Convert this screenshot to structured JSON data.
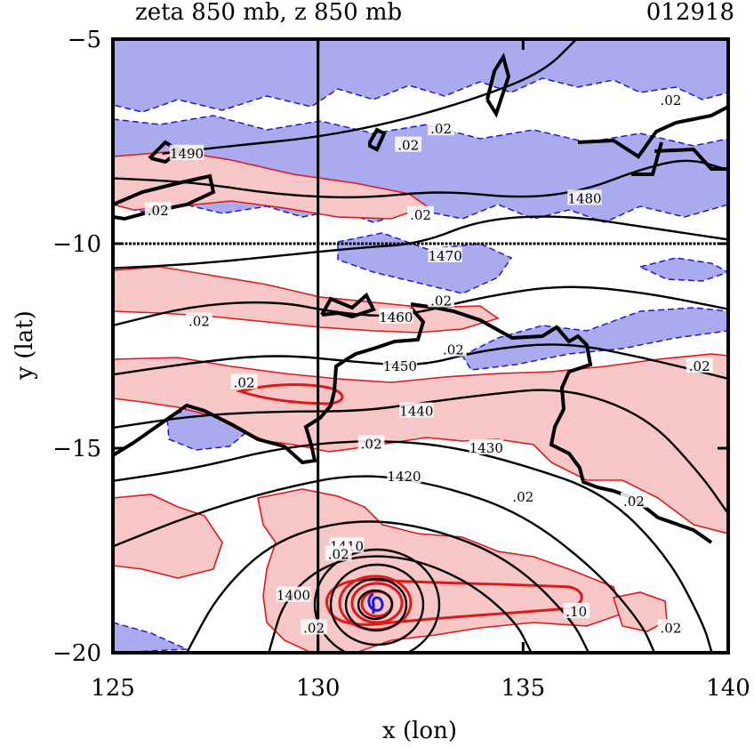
{
  "chart_data": {
    "type": "contour",
    "title_left": "zeta 850 mb, z 850 mb",
    "title_right": "012918",
    "xlabel": "x (lon)",
    "ylabel": "y (lat)",
    "xlim": [
      125,
      140
    ],
    "ylim": [
      -20,
      -5
    ],
    "xticks": [
      125,
      130,
      135,
      140
    ],
    "yticks": [
      -5,
      -10,
      -15,
      -20
    ],
    "xtick_labels": [
      "125",
      "130",
      "135",
      "140"
    ],
    "ytick_labels": [
      "−5",
      "−10",
      "−15",
      "−20"
    ],
    "reference_lines": {
      "x": 130,
      "y": -10
    },
    "colors": {
      "positive_fill": "#f7c6c6",
      "positive_line": "#e01818",
      "negative_fill": "#aaaaee",
      "negative_line": "#1a1ad8",
      "height_line": "#000000"
    },
    "height_contours": [
      {
        "label": "1490",
        "points": [
          [
            126.2,
            -7.8
          ],
          [
            128,
            -7.6
          ],
          [
            130,
            -7.4
          ],
          [
            132,
            -7.0
          ],
          [
            134,
            -6.4
          ],
          [
            135.5,
            -5.8
          ],
          [
            136.3,
            -5.0
          ]
        ]
      },
      {
        "label": "1480",
        "points": [
          [
            125,
            -8.4
          ],
          [
            127,
            -8.5
          ],
          [
            129,
            -8.8
          ],
          [
            131,
            -8.9
          ],
          [
            133,
            -8.7
          ],
          [
            135,
            -8.9
          ],
          [
            136.5,
            -8.7
          ],
          [
            137.8,
            -8.2
          ],
          [
            139,
            -7.9
          ],
          [
            140,
            -8.2
          ]
        ]
      },
      {
        "label": "1470",
        "points": [
          [
            125,
            -10.6
          ],
          [
            127,
            -10.5
          ],
          [
            129,
            -10.3
          ],
          [
            131,
            -10.1
          ],
          [
            132.5,
            -10.0
          ],
          [
            134,
            -9.4
          ],
          [
            136,
            -9.3
          ],
          [
            138,
            -9.6
          ],
          [
            140,
            -9.9
          ]
        ]
      },
      {
        "label": "1460",
        "points": [
          [
            125,
            -12.0
          ],
          [
            127,
            -11.5
          ],
          [
            129,
            -11.4
          ],
          [
            130.5,
            -11.7
          ],
          [
            132,
            -11.8
          ],
          [
            134,
            -11.3
          ],
          [
            136,
            -11.0
          ],
          [
            138,
            -11.2
          ],
          [
            140,
            -11.6
          ]
        ]
      },
      {
        "label": "1450",
        "points": [
          [
            125,
            -13.2
          ],
          [
            127,
            -12.9
          ],
          [
            129,
            -12.7
          ],
          [
            131,
            -12.9
          ],
          [
            132.5,
            -13.0
          ],
          [
            134,
            -12.6
          ],
          [
            136,
            -12.4
          ],
          [
            138,
            -12.8
          ],
          [
            140,
            -13.3
          ]
        ]
      },
      {
        "label": "1440",
        "points": [
          [
            125,
            -14.5
          ],
          [
            127,
            -14.2
          ],
          [
            129,
            -14.1
          ],
          [
            131,
            -14.1
          ],
          [
            132.5,
            -13.9
          ],
          [
            134,
            -13.7
          ],
          [
            136,
            -13.5
          ],
          [
            138,
            -14.2
          ],
          [
            139.3,
            -15.6
          ],
          [
            140,
            -16.6
          ]
        ]
      },
      {
        "label": "1430",
        "points": [
          [
            125,
            -15.8
          ],
          [
            127,
            -15.5
          ],
          [
            129,
            -15.0
          ],
          [
            131,
            -14.8
          ],
          [
            133,
            -14.9
          ],
          [
            135,
            -15.4
          ],
          [
            137,
            -16.1
          ],
          [
            138.5,
            -17.6
          ],
          [
            139.4,
            -19.3
          ],
          [
            139.6,
            -20
          ]
        ]
      },
      {
        "label": "1420",
        "points": [
          [
            125,
            -17.4
          ],
          [
            127,
            -16.6
          ],
          [
            129,
            -16.0
          ],
          [
            131,
            -15.6
          ],
          [
            133,
            -15.9
          ],
          [
            135,
            -16.6
          ],
          [
            136.8,
            -18.0
          ],
          [
            137.9,
            -19.3
          ],
          [
            138.2,
            -20
          ]
        ]
      },
      {
        "label": "1410",
        "points": [
          [
            126.8,
            -20
          ],
          [
            127.6,
            -18.5
          ],
          [
            129,
            -17.2
          ],
          [
            131,
            -16.7
          ],
          [
            133,
            -17.0
          ],
          [
            134.8,
            -17.8
          ],
          [
            136.2,
            -19.2
          ],
          [
            136.6,
            -20
          ]
        ]
      },
      {
        "label": "1400",
        "points": [
          [
            128.8,
            -20
          ],
          [
            129.2,
            -18.6
          ],
          [
            130.4,
            -17.7
          ],
          [
            132,
            -17.6
          ],
          [
            133.6,
            -18.2
          ],
          [
            134.8,
            -19.2
          ],
          [
            135.2,
            -20
          ]
        ]
      }
    ],
    "height_labels": [
      {
        "text": "1490",
        "x": 126.8,
        "y": -7.8
      },
      {
        "text": "1480",
        "x": 136.5,
        "y": -8.9
      },
      {
        "text": "1470",
        "x": 133.1,
        "y": -10.3
      },
      {
        "text": "1460",
        "x": 131.9,
        "y": -11.8
      },
      {
        "text": "1450",
        "x": 132.0,
        "y": -13.0
      },
      {
        "text": "1440",
        "x": 132.4,
        "y": -14.1
      },
      {
        "text": "1430",
        "x": 134.1,
        "y": -15.0
      },
      {
        "text": "1420",
        "x": 132.1,
        "y": -15.7
      },
      {
        "text": "1410",
        "x": 130.7,
        "y": -17.4
      },
      {
        "text": "1400",
        "x": 129.4,
        "y": -18.6
      },
      {
        "text": ".10",
        "x": 136.3,
        "y": -19.0
      }
    ],
    "vorticity_labels": [
      {
        "text": ".02",
        "x": 138.6,
        "y": -6.5
      },
      {
        "text": ".02",
        "x": 133.0,
        "y": -7.2
      },
      {
        "text": ".02",
        "x": 132.2,
        "y": -7.6
      },
      {
        "text": ".02",
        "x": 126.1,
        "y": -9.2
      },
      {
        "text": ".02",
        "x": 132.5,
        "y": -9.3
      },
      {
        "text": ".02",
        "x": 133.0,
        "y": -11.4
      },
      {
        "text": ".02",
        "x": 127.1,
        "y": -11.9
      },
      {
        "text": ".02",
        "x": 139.3,
        "y": -13.0
      },
      {
        "text": ".02",
        "x": 128.2,
        "y": -13.4
      },
      {
        "text": ".02",
        "x": 133.3,
        "y": -12.6
      },
      {
        "text": ".02",
        "x": 131.3,
        "y": -14.9
      },
      {
        "text": ".02",
        "x": 137.7,
        "y": -16.3
      },
      {
        "text": ".02",
        "x": 135.0,
        "y": -16.2
      },
      {
        "text": ".02",
        "x": 130.5,
        "y": -17.6
      },
      {
        "text": ".02",
        "x": 138.6,
        "y": -19.4
      },
      {
        "text": ".02",
        "x": 129.9,
        "y": -19.4
      }
    ],
    "cyclone_center": {
      "x": 131.4,
      "y": -18.9
    }
  }
}
